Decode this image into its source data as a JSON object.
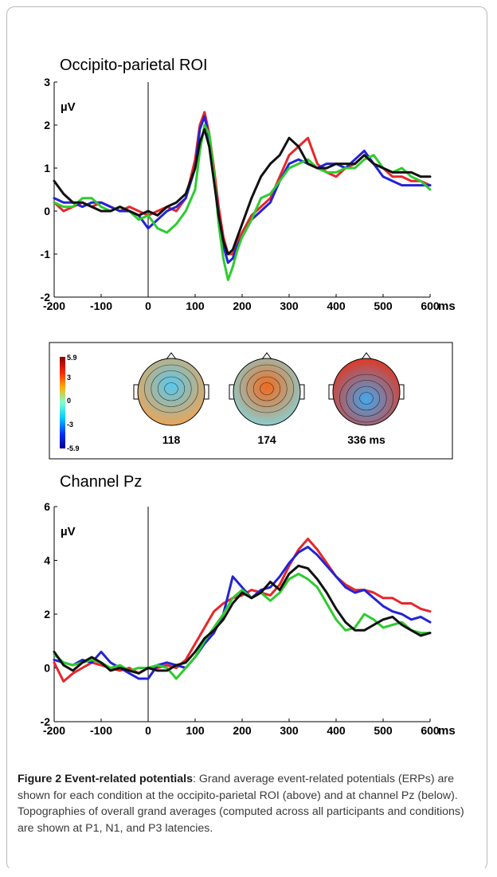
{
  "chart_data": [
    {
      "type": "line",
      "title": "Occipito-parietal ROI",
      "ylabel": "µV",
      "xunit": "ms",
      "xlim": [
        -200,
        600
      ],
      "ylim": [
        -2,
        3
      ],
      "xticks": [
        -200,
        -100,
        0,
        100,
        200,
        300,
        400,
        500,
        600
      ],
      "yticks": [
        -2,
        -1,
        0,
        1,
        2,
        3
      ],
      "x": [
        -200,
        -180,
        -160,
        -140,
        -120,
        -100,
        -80,
        -60,
        -40,
        -20,
        0,
        20,
        40,
        60,
        80,
        100,
        110,
        120,
        130,
        140,
        150,
        160,
        170,
        180,
        190,
        200,
        220,
        240,
        260,
        280,
        300,
        320,
        340,
        360,
        380,
        400,
        420,
        440,
        460,
        480,
        500,
        520,
        540,
        560,
        580,
        600
      ],
      "series": [
        {
          "color": "#e8262b",
          "values": [
            0.2,
            0.0,
            0.1,
            0.2,
            0.1,
            0.2,
            0.1,
            0.0,
            0.1,
            0.0,
            -0.1,
            0.0,
            0.1,
            0.0,
            0.3,
            1.2,
            2.0,
            2.3,
            1.8,
            1.0,
            0.1,
            -0.6,
            -1.0,
            -1.0,
            -0.7,
            -0.5,
            -0.1,
            0.1,
            0.3,
            0.8,
            1.3,
            1.5,
            1.7,
            1.1,
            0.9,
            0.8,
            1.0,
            1.1,
            1.3,
            1.1,
            1.0,
            0.8,
            0.8,
            0.7,
            0.7,
            0.6
          ]
        },
        {
          "color": "#2323d6",
          "values": [
            0.3,
            0.2,
            0.2,
            0.1,
            0.2,
            0.2,
            0.1,
            0.0,
            0.0,
            -0.1,
            -0.4,
            -0.2,
            0.0,
            0.1,
            0.3,
            1.0,
            1.9,
            2.2,
            1.7,
            0.8,
            -0.1,
            -0.8,
            -1.2,
            -1.1,
            -0.8,
            -0.6,
            -0.2,
            0.0,
            0.2,
            0.7,
            1.1,
            1.2,
            1.1,
            1.0,
            1.1,
            1.1,
            1.0,
            1.2,
            1.4,
            1.1,
            0.8,
            0.7,
            0.6,
            0.6,
            0.6,
            0.6
          ]
        },
        {
          "color": "#2ecc2e",
          "values": [
            0.2,
            0.1,
            0.1,
            0.3,
            0.3,
            0.1,
            0.0,
            0.1,
            0.0,
            -0.2,
            -0.1,
            -0.4,
            -0.5,
            -0.3,
            0.0,
            0.5,
            1.4,
            2.0,
            1.8,
            0.9,
            -0.3,
            -1.1,
            -1.6,
            -1.3,
            -0.9,
            -0.6,
            -0.2,
            0.3,
            0.4,
            0.7,
            1.0,
            1.1,
            1.2,
            1.0,
            0.9,
            0.9,
            1.0,
            1.0,
            1.2,
            1.3,
            1.0,
            0.9,
            1.0,
            0.8,
            0.7,
            0.5
          ]
        },
        {
          "color": "#111111",
          "values": [
            0.7,
            0.4,
            0.2,
            0.2,
            0.1,
            0.0,
            0.0,
            0.1,
            0.0,
            -0.1,
            0.0,
            -0.1,
            0.1,
            0.2,
            0.4,
            1.0,
            1.6,
            1.9,
            1.5,
            0.7,
            -0.1,
            -0.7,
            -1.0,
            -0.9,
            -0.6,
            -0.3,
            0.3,
            0.8,
            1.1,
            1.3,
            1.7,
            1.5,
            1.1,
            1.0,
            1.0,
            1.1,
            1.1,
            1.1,
            1.3,
            1.1,
            1.0,
            0.9,
            0.9,
            0.9,
            0.8,
            0.8
          ]
        }
      ]
    },
    {
      "type": "heatmap",
      "colorbar_max": "5.9",
      "colorbar_ticks": [
        "3",
        "0",
        "-3"
      ],
      "colorbar_min": "-5.9",
      "maps": [
        {
          "label": "118",
          "center_color": "#59c8ee",
          "posterior_color": "#f7a24a"
        },
        {
          "label": "174",
          "center_color": "#f06a1e",
          "posterior_color": "#7fd9e4"
        },
        {
          "label": "336 ms",
          "center_color": "#44a9ee",
          "posterior_color": "#e6341c"
        }
      ]
    },
    {
      "type": "line",
      "title": "Channel Pz",
      "ylabel": "µV",
      "xunit": "ms",
      "xlim": [
        -200,
        600
      ],
      "ylim": [
        -2,
        6
      ],
      "xticks": [
        -200,
        -100,
        0,
        100,
        200,
        300,
        400,
        500,
        600
      ],
      "yticks": [
        -2,
        0,
        2,
        4,
        6
      ],
      "x": [
        -200,
        -180,
        -160,
        -140,
        -120,
        -100,
        -80,
        -60,
        -40,
        -20,
        0,
        20,
        40,
        60,
        80,
        100,
        120,
        140,
        160,
        180,
        200,
        220,
        240,
        260,
        280,
        300,
        320,
        340,
        360,
        380,
        400,
        420,
        440,
        460,
        480,
        500,
        520,
        540,
        560,
        580,
        600
      ],
      "series": [
        {
          "color": "#e8262b",
          "values": [
            0.2,
            -0.5,
            -0.2,
            0.0,
            0.2,
            0.1,
            0.0,
            -0.1,
            0.0,
            -0.2,
            0.0,
            0.0,
            0.1,
            0.0,
            0.3,
            0.9,
            1.5,
            2.1,
            2.4,
            2.6,
            2.7,
            2.9,
            2.8,
            2.7,
            3.1,
            3.8,
            4.4,
            4.8,
            4.4,
            3.9,
            3.4,
            3.1,
            2.9,
            2.9,
            2.8,
            2.6,
            2.6,
            2.4,
            2.4,
            2.2,
            2.1
          ]
        },
        {
          "color": "#2323d6",
          "values": [
            0.3,
            0.2,
            0.1,
            0.3,
            0.2,
            0.6,
            0.2,
            0.0,
            -0.2,
            -0.4,
            -0.4,
            0.1,
            0.2,
            0.1,
            0.0,
            0.4,
            0.9,
            1.3,
            2.0,
            3.4,
            3.0,
            2.6,
            2.9,
            3.0,
            3.4,
            3.9,
            4.3,
            4.5,
            4.2,
            3.8,
            3.4,
            3.0,
            2.8,
            2.9,
            2.6,
            2.3,
            2.1,
            2.0,
            1.8,
            1.9,
            1.7
          ]
        },
        {
          "color": "#2ecc2e",
          "values": [
            0.5,
            0.2,
            0.1,
            0.2,
            0.3,
            0.2,
            0.0,
            0.1,
            -0.1,
            0.0,
            0.0,
            0.1,
            0.0,
            -0.4,
            0.0,
            0.4,
            1.0,
            1.5,
            2.0,
            2.6,
            2.9,
            2.6,
            2.8,
            2.5,
            2.8,
            3.3,
            3.5,
            3.3,
            3.0,
            2.4,
            1.8,
            1.4,
            1.5,
            2.0,
            1.8,
            1.5,
            1.6,
            1.7,
            1.4,
            1.3,
            1.3
          ]
        },
        {
          "color": "#111111",
          "values": [
            0.6,
            0.1,
            -0.1,
            0.2,
            0.4,
            0.2,
            -0.1,
            0.0,
            -0.1,
            -0.2,
            0.0,
            -0.1,
            -0.1,
            0.1,
            0.2,
            0.6,
            1.1,
            1.4,
            1.8,
            2.4,
            2.8,
            2.6,
            2.8,
            3.2,
            2.9,
            3.5,
            3.8,
            3.7,
            3.3,
            2.8,
            2.2,
            1.7,
            1.4,
            1.4,
            1.6,
            1.8,
            1.9,
            1.6,
            1.4,
            1.2,
            1.3
          ]
        }
      ]
    }
  ],
  "caption": {
    "label": "Figure 2 Event-related potentials",
    "text": ": Grand average event-related potentials (ERPs) are shown for each condition at the occipito-parietal ROI (above) and at channel Pz (below). Topographies of overall grand averages (computed across all participants and conditions) are shown at P1, N1, and P3 latencies."
  }
}
